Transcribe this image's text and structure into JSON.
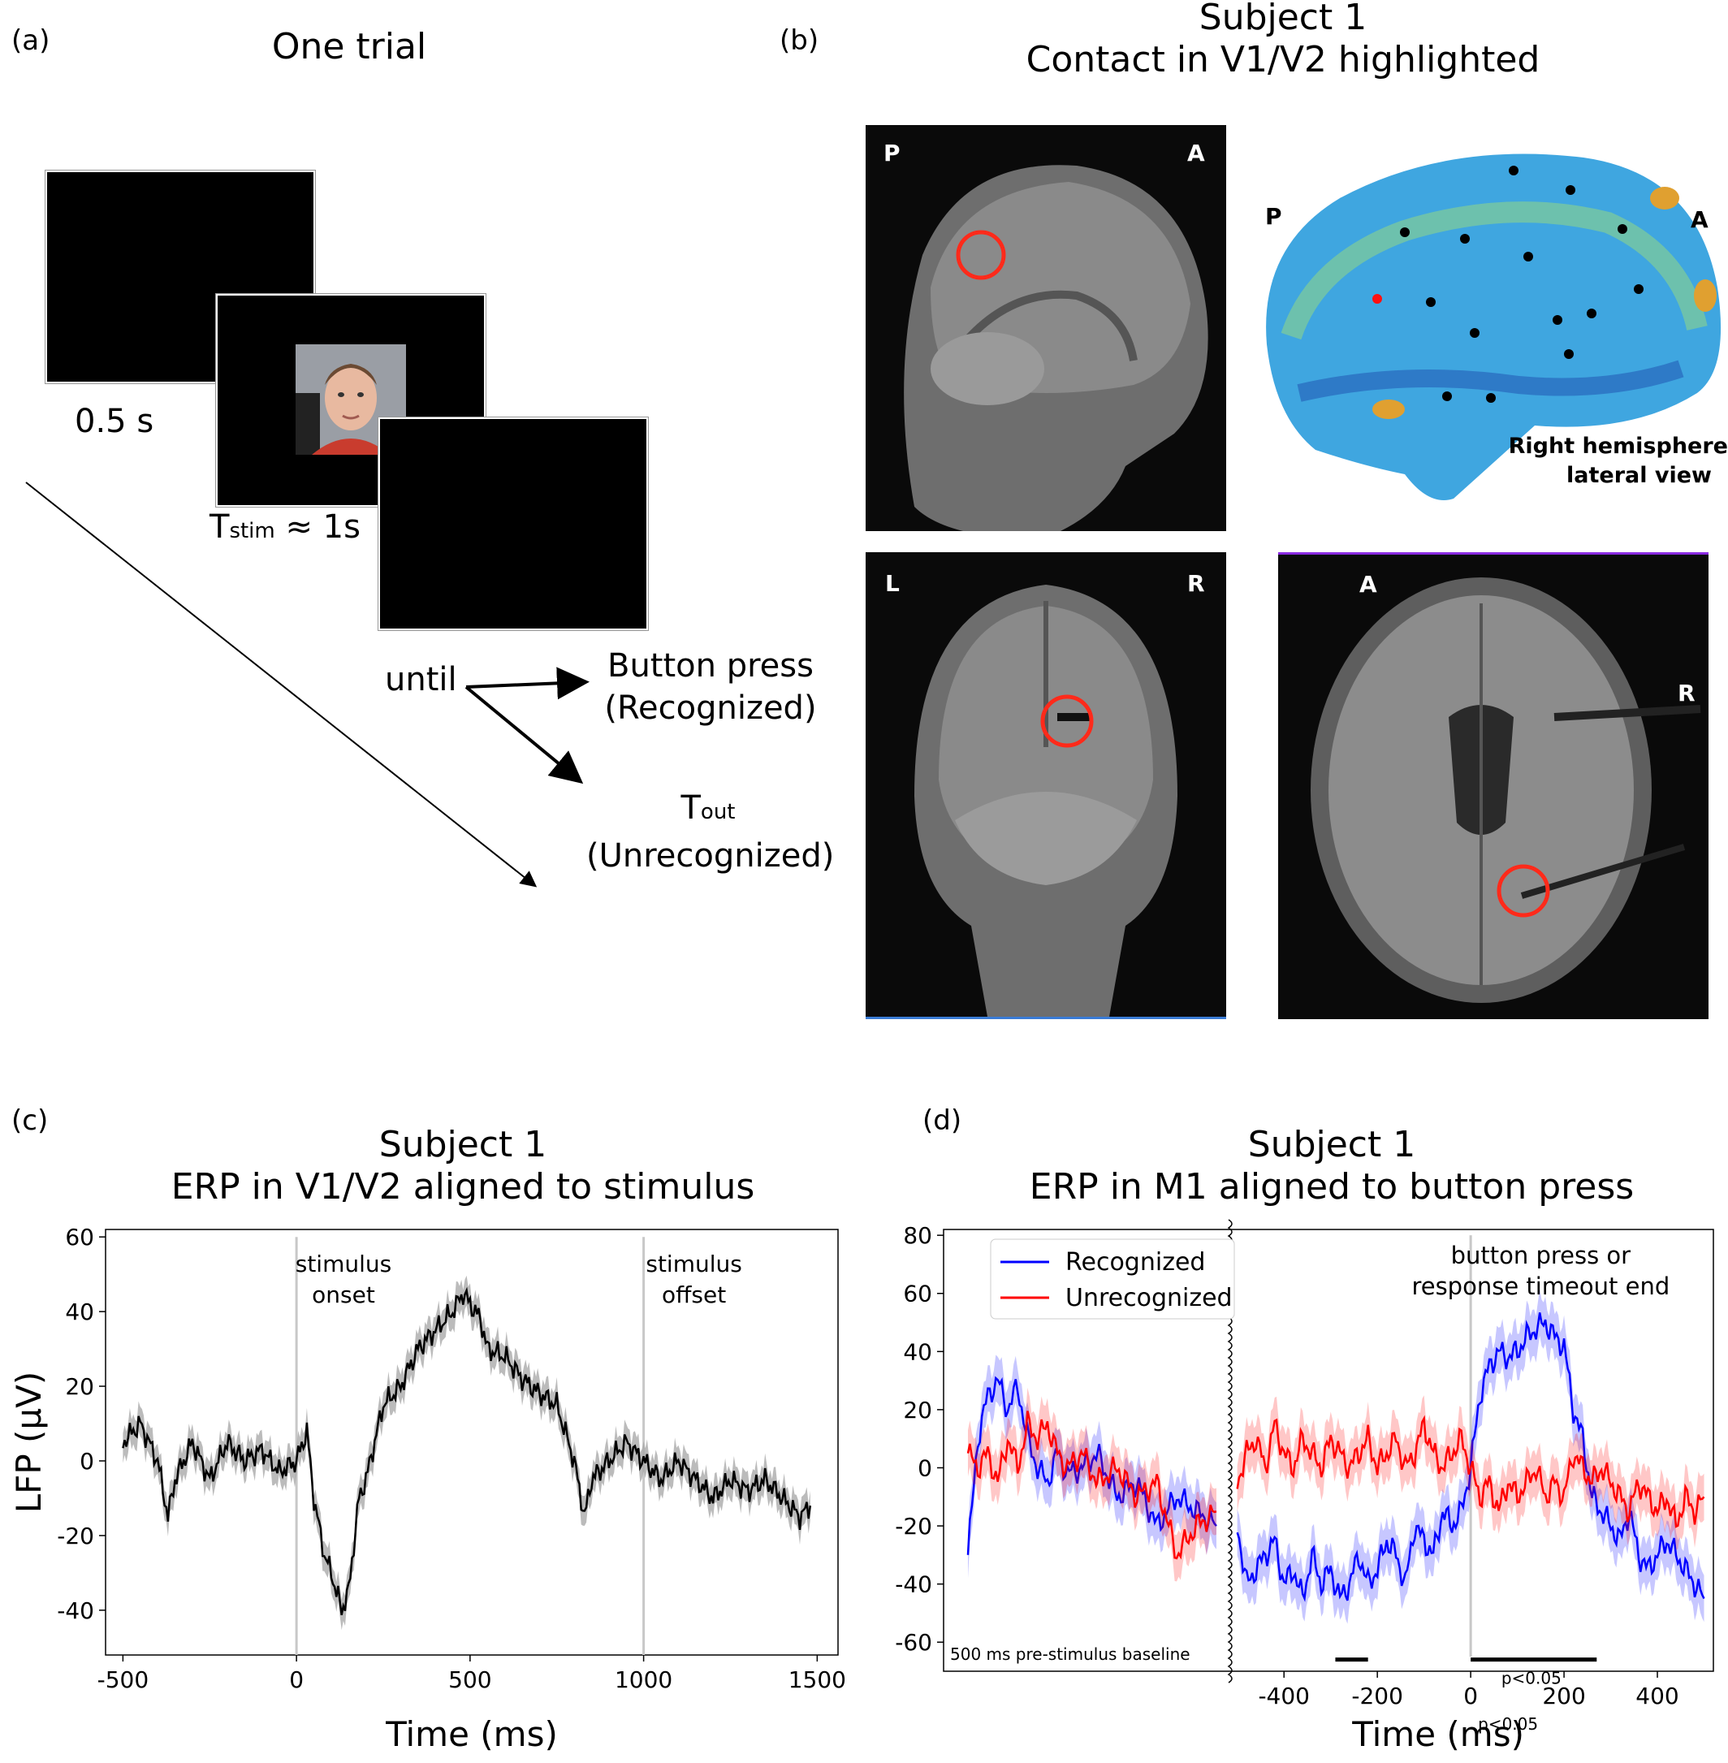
{
  "panel_a": {
    "label": "(a)",
    "title": "One trial",
    "duration_blank": "0.5 s",
    "tstim_main": "T",
    "tstim_sub": "stim",
    "tstim_rest": "≈ 1s",
    "until": "until",
    "button_press": "Button press",
    "recognized": "(Recognized)",
    "tout_main": "T",
    "tout_sub": "out",
    "unrecognized": "(Unrecognized)"
  },
  "panel_b": {
    "label": "(b)",
    "title_line1": "Subject 1",
    "title_line2": "Contact in V1/V2 highlighted",
    "sagittal": {
      "left": "P",
      "right": "A"
    },
    "surface": {
      "left": "P",
      "right": "A",
      "caption_line1": "Right hemisphere",
      "caption_line2": "lateral view"
    },
    "coronal": {
      "left": "L",
      "right": "R"
    },
    "axial": {
      "top": "A",
      "right": "R"
    }
  },
  "panel_c": {
    "label": "(c)",
    "title_line1": "Subject 1",
    "title_line2": "ERP in V1/V2 aligned to stimulus",
    "xlabel": "Time (ms)",
    "ylabel": "LFP (μV)",
    "onset_line1": "stimulus",
    "onset_line2": "onset",
    "offset_line1": "stimulus",
    "offset_line2": "offset"
  },
  "panel_d": {
    "label": "(d)",
    "title_line1": "Subject 1",
    "title_line2": "ERP in M1 aligned to button press",
    "xlabel": "Time (ms)",
    "legend_recognized": "Recognized",
    "legend_unrecognized": "Unrecognized",
    "event_line1": "button press or",
    "event_line2": "response timeout end",
    "baseline": "500 ms pre-stimulus baseline",
    "sig_label": "p<0.05",
    "sig_label_below": "p<0.05"
  },
  "chart_data": [
    {
      "type": "line",
      "panel": "c",
      "xlim": [
        -550,
        1560
      ],
      "ylim": [
        -52,
        62
      ],
      "xticks": [
        -500,
        0,
        500,
        1000,
        1500
      ],
      "yticks": [
        -40,
        -20,
        0,
        20,
        40,
        60
      ],
      "vlines": [
        0,
        1000
      ],
      "line_color": "#000000",
      "band_color": "#aaaaaa",
      "series": [
        {
          "x": [
            -500,
            -450,
            -400,
            -370,
            -350,
            -300,
            -250,
            -200,
            -150,
            -100,
            -50,
            0,
            30,
            50,
            80,
            100,
            130,
            150,
            180,
            200,
            250,
            300,
            350,
            400,
            450,
            480,
            500,
            530,
            550,
            600,
            650,
            700,
            750,
            800,
            830,
            850,
            900,
            950,
            1000,
            1050,
            1100,
            1150,
            1200,
            1250,
            1300,
            1350,
            1400,
            1450,
            1480
          ],
          "y": [
            5,
            10,
            0,
            -15,
            -5,
            5,
            -5,
            5,
            0,
            3,
            -3,
            0,
            8,
            -10,
            -25,
            -30,
            -40,
            -35,
            -10,
            -5,
            15,
            20,
            30,
            35,
            40,
            45,
            42,
            38,
            30,
            28,
            22,
            18,
            15,
            0,
            -15,
            -5,
            0,
            5,
            0,
            -5,
            0,
            -5,
            -10,
            -5,
            -8,
            -5,
            -10,
            -15,
            -12
          ]
        }
      ]
    },
    {
      "type": "line",
      "panel": "d",
      "xlim_baseline": [
        0,
        500
      ],
      "xlim": [
        -510,
        520
      ],
      "ylim": [
        -70,
        82
      ],
      "xticks": [
        -400,
        -200,
        0,
        200,
        400
      ],
      "yticks": [
        -60,
        -40,
        -20,
        0,
        20,
        40,
        60,
        80
      ],
      "vlines": [
        0
      ],
      "series": [
        {
          "name": "Recognized",
          "color": "#0000ff",
          "baseline": {
            "x": [
              0,
              20,
              40,
              60,
              80,
              100,
              120,
              140,
              160,
              180,
              200,
              230,
              260,
              300,
              340,
              380,
              420,
              460,
              500
            ],
            "y": [
              -30,
              10,
              25,
              30,
              20,
              28,
              10,
              0,
              -5,
              5,
              -2,
              0,
              5,
              -10,
              -5,
              -20,
              -10,
              -15,
              -20
            ]
          },
          "main": {
            "x": [
              -500,
              -480,
              -460,
              -440,
              -420,
              -400,
              -380,
              -360,
              -340,
              -320,
              -300,
              -280,
              -260,
              -240,
              -220,
              -200,
              -180,
              -160,
              -140,
              -120,
              -100,
              -80,
              -60,
              -40,
              -20,
              0,
              20,
              40,
              60,
              80,
              100,
              120,
              140,
              160,
              180,
              200,
              220,
              240,
              260,
              280,
              300,
              320,
              340,
              360,
              380,
              400,
              420,
              440,
              460,
              480,
              500
            ],
            "y": [
              -20,
              -40,
              -35,
              -30,
              -25,
              -40,
              -35,
              -45,
              -30,
              -40,
              -35,
              -45,
              -40,
              -30,
              -40,
              -35,
              -25,
              -30,
              -40,
              -20,
              -25,
              -30,
              -15,
              -20,
              -15,
              0,
              25,
              35,
              40,
              38,
              40,
              45,
              48,
              50,
              45,
              42,
              20,
              10,
              -10,
              -15,
              -20,
              -25,
              -15,
              -30,
              -35,
              -30,
              -25,
              -30,
              -35,
              -40,
              -45
            ]
          }
        },
        {
          "name": "Unrecognized",
          "color": "#ff0000",
          "baseline": {
            "x": [
              0,
              20,
              40,
              60,
              80,
              100,
              120,
              140,
              160,
              180,
              200,
              230,
              260,
              300,
              340,
              380,
              420,
              460,
              500
            ],
            "y": [
              5,
              0,
              5,
              -5,
              10,
              0,
              15,
              10,
              15,
              5,
              0,
              5,
              -5,
              0,
              -10,
              -5,
              -30,
              -20,
              -15
            ]
          },
          "main": {
            "x": [
              -500,
              -480,
              -460,
              -440,
              -420,
              -400,
              -380,
              -360,
              -340,
              -320,
              -300,
              -280,
              -260,
              -240,
              -220,
              -200,
              -180,
              -160,
              -140,
              -120,
              -100,
              -80,
              -60,
              -40,
              -20,
              0,
              20,
              40,
              60,
              80,
              100,
              120,
              140,
              160,
              180,
              200,
              220,
              240,
              260,
              280,
              300,
              320,
              340,
              360,
              380,
              400,
              420,
              440,
              460,
              480,
              500
            ],
            "y": [
              -5,
              5,
              10,
              0,
              15,
              5,
              0,
              10,
              5,
              0,
              10,
              5,
              0,
              5,
              10,
              0,
              5,
              10,
              0,
              5,
              15,
              5,
              0,
              5,
              10,
              0,
              -10,
              -5,
              -15,
              -5,
              -10,
              -5,
              0,
              -10,
              -5,
              -10,
              5,
              0,
              -5,
              0,
              -5,
              -10,
              -15,
              -5,
              -10,
              -15,
              -10,
              -20,
              -10,
              -15,
              -10
            ]
          }
        }
      ],
      "significance_bars": [
        [
          -290,
          -220
        ],
        [
          0,
          270
        ]
      ]
    }
  ]
}
